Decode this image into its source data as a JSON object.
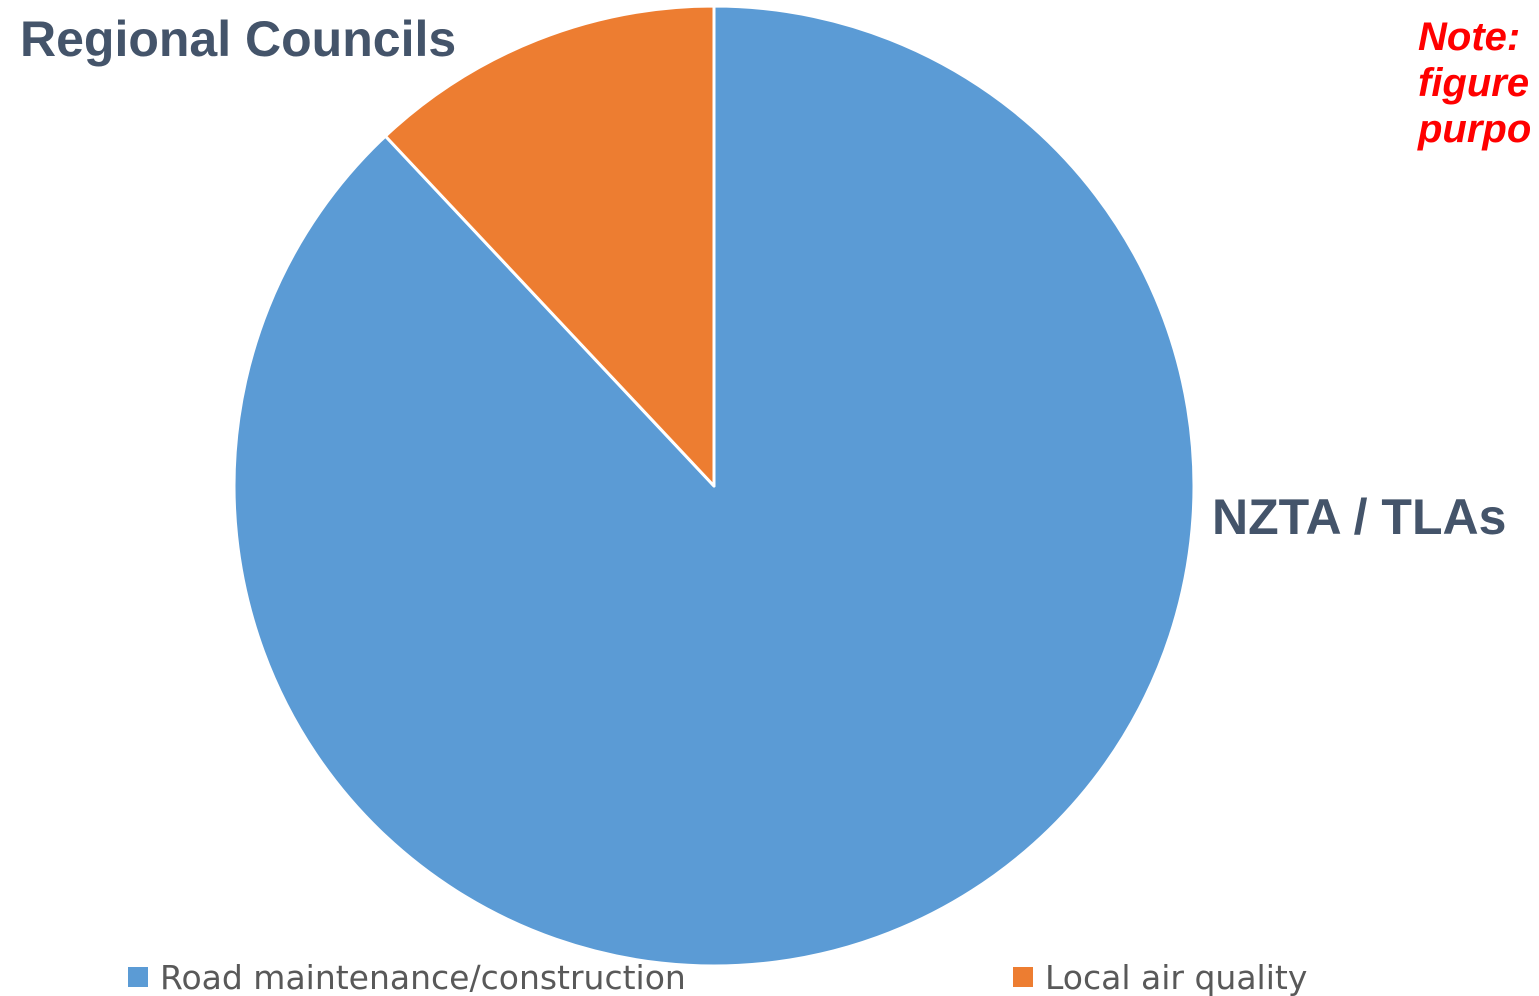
{
  "chart_data": {
    "type": "pie",
    "categories": [
      "Road maintenance/construction",
      "Local air quality"
    ],
    "values": [
      88,
      12
    ],
    "colors": [
      "#5b9bd5",
      "#ed7d31"
    ],
    "start_angle_deg": 0,
    "direction": "clockwise",
    "slice_labels": [
      "NZTA / TLAs",
      "Regional Councils"
    ],
    "legend": {
      "position": "bottom",
      "entries": [
        "Road maintenance/construction",
        "Local air quality"
      ]
    }
  },
  "note": {
    "lines": [
      "Note:",
      "figure",
      "purpo"
    ],
    "color": "#ff0000"
  },
  "label_color": "#44546a"
}
